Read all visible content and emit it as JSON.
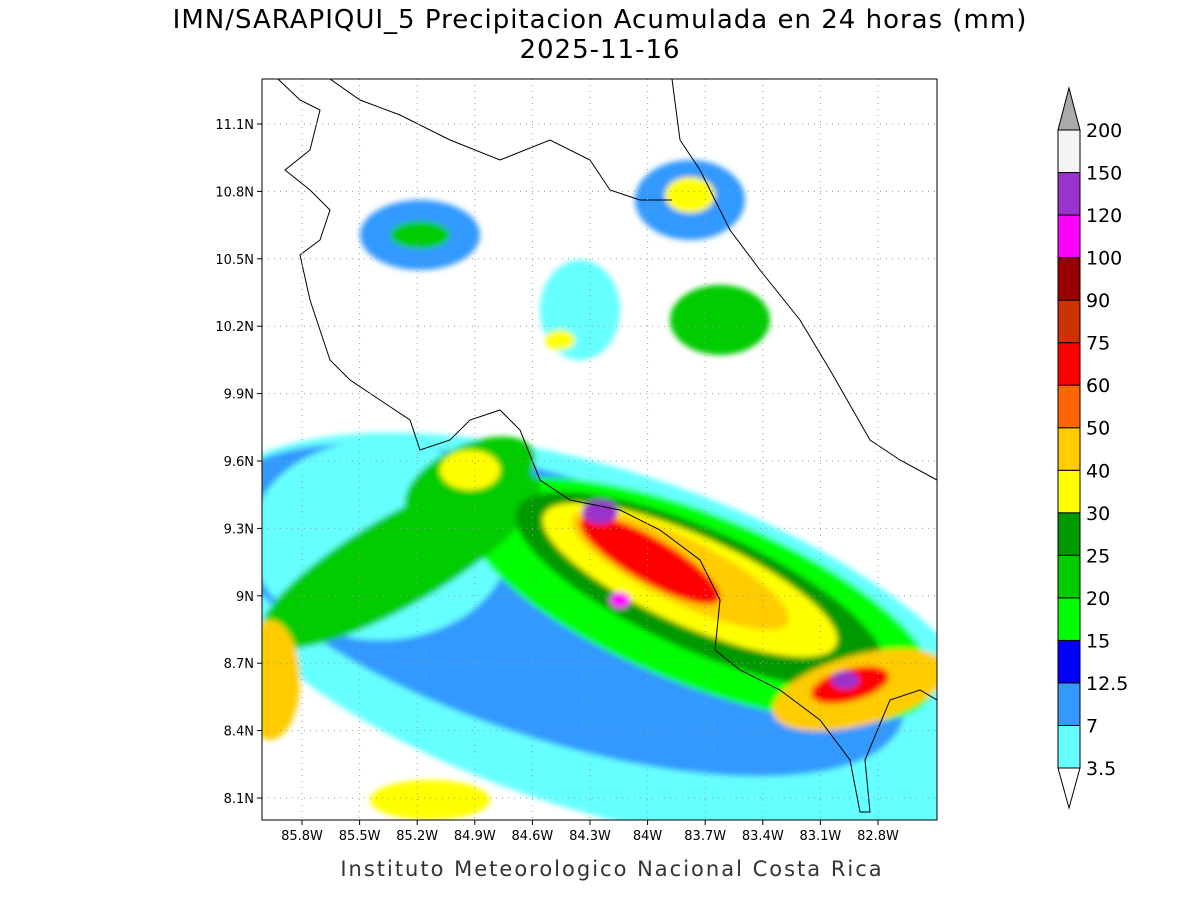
{
  "title": "IMN/SARAPIQUI_5 Precipitacion Acumulada en 24 horas (mm)",
  "subtitle": "2025-11-16",
  "map": {
    "lat_ticks": [
      "11.1N",
      "10.8N",
      "10.5N",
      "10.2N",
      "9.9N",
      "9.6N",
      "9.3N",
      "9N",
      "8.7N",
      "8.4N",
      "8.1N"
    ],
    "lon_ticks": [
      "85.8W",
      "85.5W",
      "85.2W",
      "84.9W",
      "84.6W",
      "84.3W",
      "84W",
      "83.7W",
      "83.4W",
      "83.1W",
      "82.8W"
    ]
  },
  "colorbar": {
    "levels": [
      3.5,
      7,
      12.5,
      15,
      20,
      25,
      30,
      40,
      50,
      60,
      75,
      90,
      100,
      120,
      150,
      200
    ],
    "colors": [
      "#66ffff",
      "#3399ff",
      "#0000ff",
      "#00ff00",
      "#00cc00",
      "#009900",
      "#ffff00",
      "#ffcc00",
      "#ff6600",
      "#ff0000",
      "#cc3300",
      "#990000",
      "#ff00ff",
      "#9933cc",
      "#f4f4f4"
    ],
    "under_color": "#ffffff",
    "over_color": "#aaaaaa"
  },
  "footer": "Instituto Meteorologico Nacional Costa Rica"
}
